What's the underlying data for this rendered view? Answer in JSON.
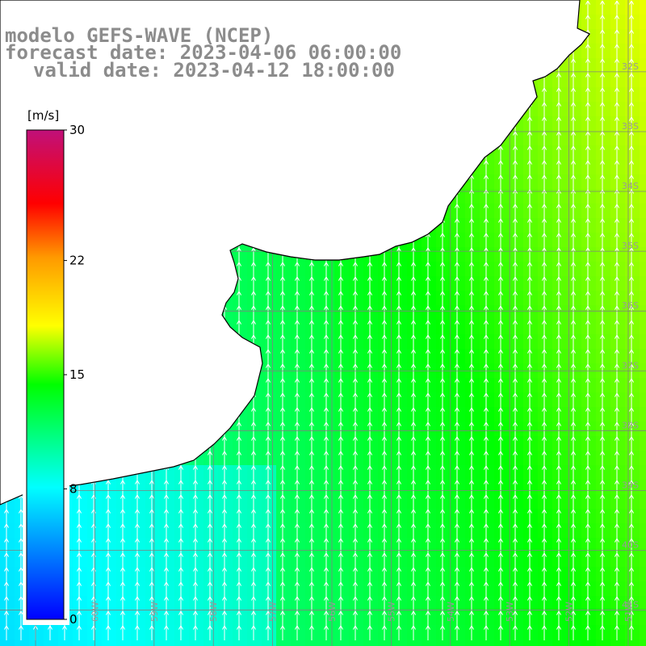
{
  "title": {
    "line1": "modelo GEFS-WAVE (NCEP)",
    "line2": "forecast date: 2023-04-06 06:00:00",
    "line3": "valid date: 2023-04-12 18:00:00"
  },
  "colorbar": {
    "unit_label": "[m/s]",
    "tick_labels": [
      "30",
      "22",
      "15",
      "8",
      "0"
    ],
    "tick_values": [
      30,
      22,
      15,
      8,
      0
    ],
    "range": [
      0,
      30
    ]
  },
  "map": {
    "variable": "wind speed",
    "lat_labels": [
      "32S",
      "33S",
      "34S",
      "35S",
      "36S",
      "37S",
      "38S",
      "39S",
      "40S",
      "41S"
    ],
    "lat_values": [
      -32,
      -33,
      -34,
      -35,
      -36,
      -37,
      -38,
      -39,
      -40,
      -41
    ],
    "lon_labels": [
      "61W",
      "60W",
      "59W",
      "58W",
      "57W",
      "56W",
      "55W",
      "54W",
      "53W",
      "52W",
      "51W"
    ],
    "lon_values": [
      -61,
      -60,
      -59,
      -58,
      -57,
      -56,
      -55,
      -54,
      -53,
      -52,
      -51
    ],
    "lon_range": [
      -61.6,
      -50.7
    ],
    "lat_range": [
      -30.8,
      -41.6
    ],
    "grid": true,
    "wind_direction_from": "south",
    "land_color": "#ffffff",
    "coast_color": "#000000",
    "grid_color": "#808080"
  }
}
